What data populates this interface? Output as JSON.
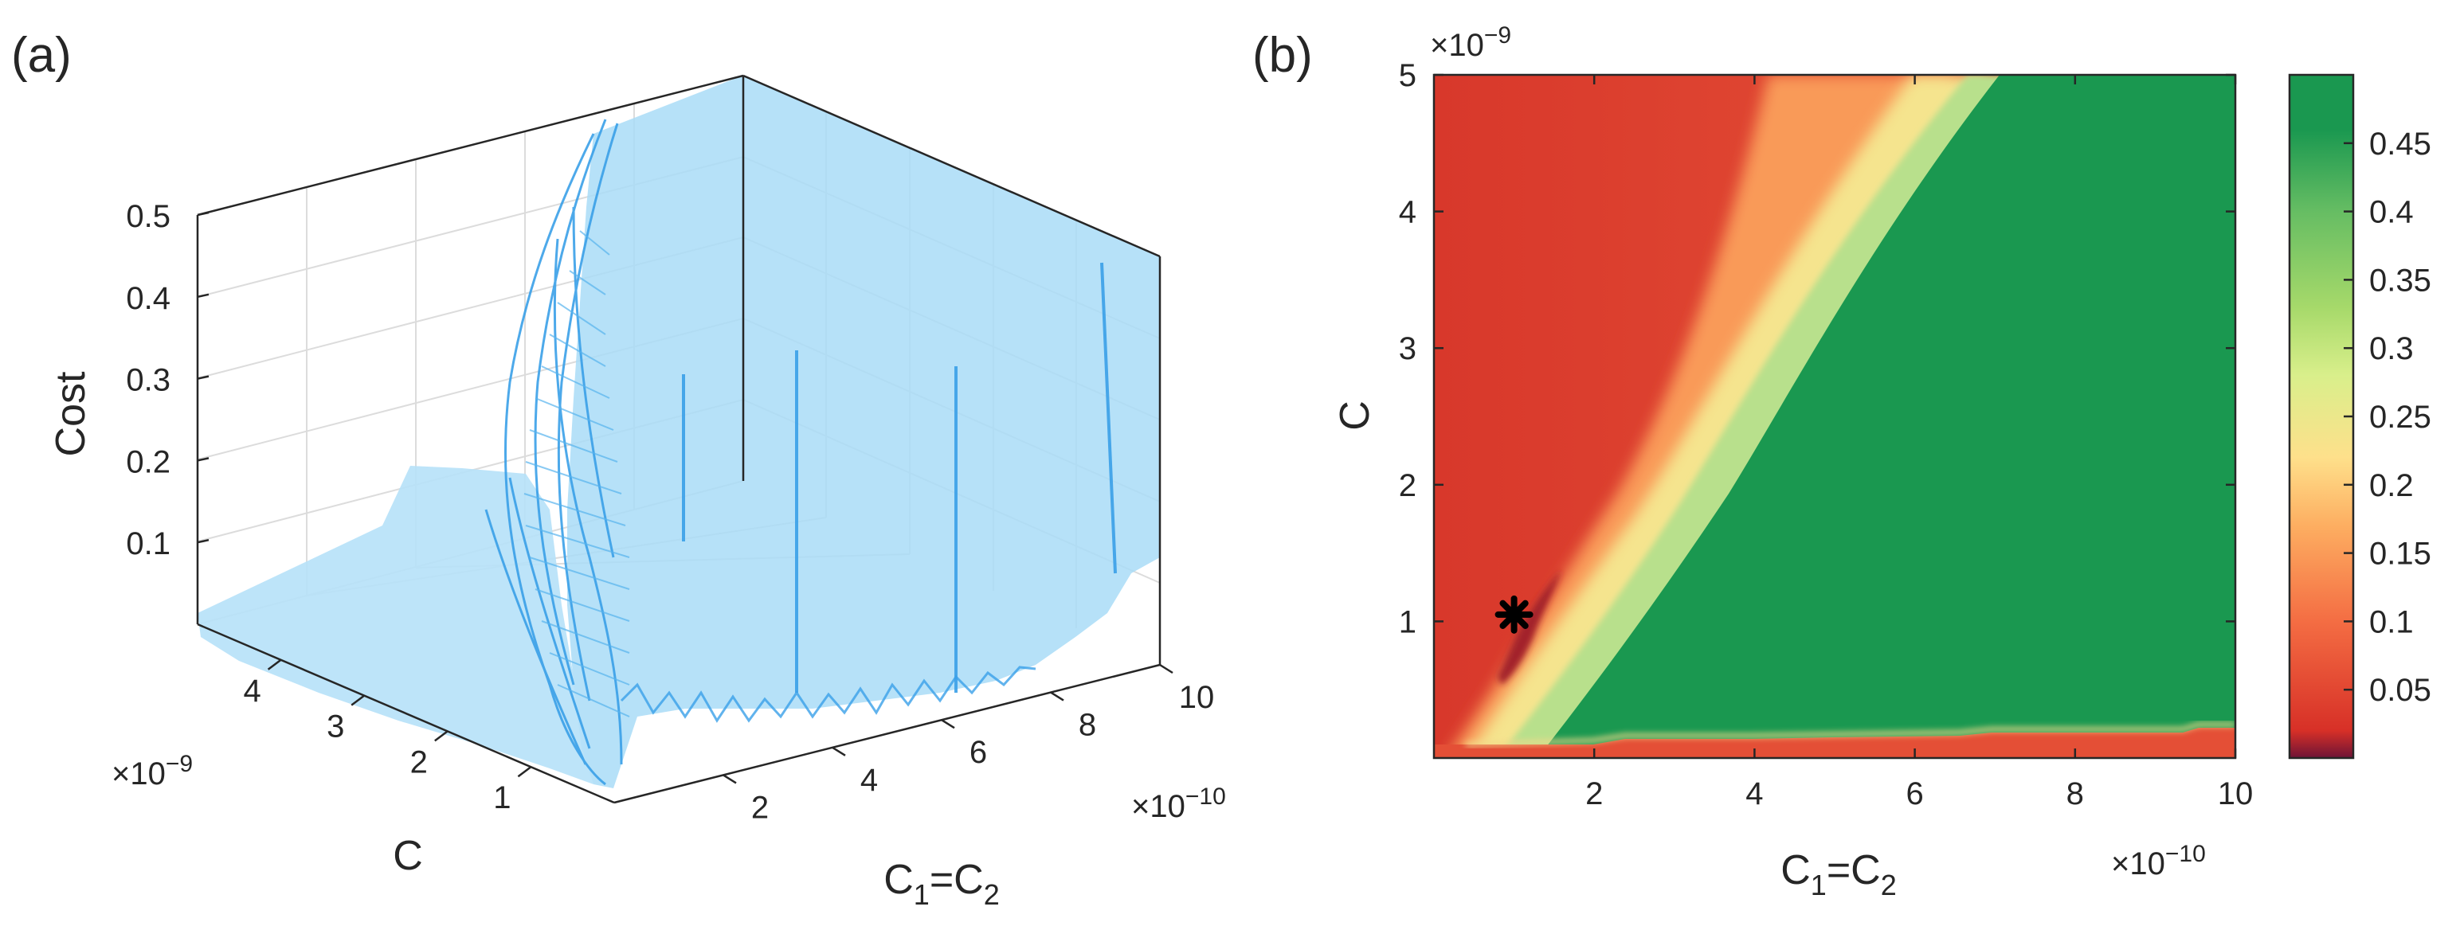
{
  "chart_data": [
    {
      "panel_label": "(a)",
      "type": "surface3d",
      "title": "",
      "zlabel": "Cost",
      "ylabel": "C",
      "xlabel_base": "C",
      "xlabel_sub1": "1",
      "xlabel_eq": "=C",
      "xlabel_sub2": "2",
      "x_ticks": [
        "2",
        "4",
        "6",
        "8",
        "10"
      ],
      "x_tick_values": [
        2,
        4,
        6,
        8,
        10
      ],
      "x_multiplier": {
        "base": "×10",
        "exp": "−10"
      },
      "y_ticks": [
        "1",
        "2",
        "3",
        "4"
      ],
      "y_tick_values": [
        1,
        2,
        3,
        4
      ],
      "y_multiplier": {
        "base": "×10",
        "exp": "−9"
      },
      "z_ticks": [
        "0.1",
        "0.2",
        "0.3",
        "0.4",
        "0.5"
      ],
      "z_tick_values": [
        0.1,
        0.2,
        0.3,
        0.4,
        0.5
      ],
      "xlim": [
        0,
        10
      ],
      "ylim": [
        0,
        5
      ],
      "zlim": [
        0,
        0.5
      ],
      "surface_color": "#a9dcf7",
      "edge_color": "#3aa0e8",
      "grid": true
    },
    {
      "panel_label": "(b)",
      "type": "heatmap",
      "title": "",
      "xlabel_base": "C",
      "xlabel_sub1": "1",
      "xlabel_eq": "=C",
      "xlabel_sub2": "2",
      "ylabel": "C",
      "x_ticks": [
        "2",
        "4",
        "6",
        "8",
        "10"
      ],
      "x_tick_values": [
        2,
        4,
        6,
        8,
        10
      ],
      "x_multiplier": {
        "base": "×10",
        "exp": "−10"
      },
      "y_ticks": [
        "1",
        "2",
        "3",
        "4",
        "5"
      ],
      "y_tick_values": [
        1,
        2,
        3,
        4,
        5
      ],
      "y_multiplier": {
        "base": "×10",
        "exp": "−9"
      },
      "xlim": [
        0,
        10
      ],
      "ylim": [
        0,
        5
      ],
      "colorbar": {
        "ticks": [
          "0.05",
          "0.1",
          "0.15",
          "0.2",
          "0.25",
          "0.3",
          "0.35",
          "0.4",
          "0.45"
        ],
        "tick_values": [
          0.05,
          0.1,
          0.15,
          0.2,
          0.25,
          0.3,
          0.35,
          0.4,
          0.45
        ],
        "range": [
          0.0,
          0.5
        ],
        "colors": [
          "#6e1436",
          "#d73027",
          "#f46d43",
          "#fdae61",
          "#fee08b",
          "#d9ef8b",
          "#a6d96a",
          "#66bd63",
          "#1a9850"
        ],
        "stops": [
          0.0,
          0.02,
          0.1,
          0.17,
          0.22,
          0.28,
          0.33,
          0.4,
          0.46
        ]
      },
      "regions": {
        "low_color": "#e04a33",
        "band_color": "#f88b4c",
        "green_color": "#1a9850"
      },
      "marker": {
        "symbol": "asterisk",
        "x": 1.0,
        "y": 1.05
      }
    }
  ]
}
